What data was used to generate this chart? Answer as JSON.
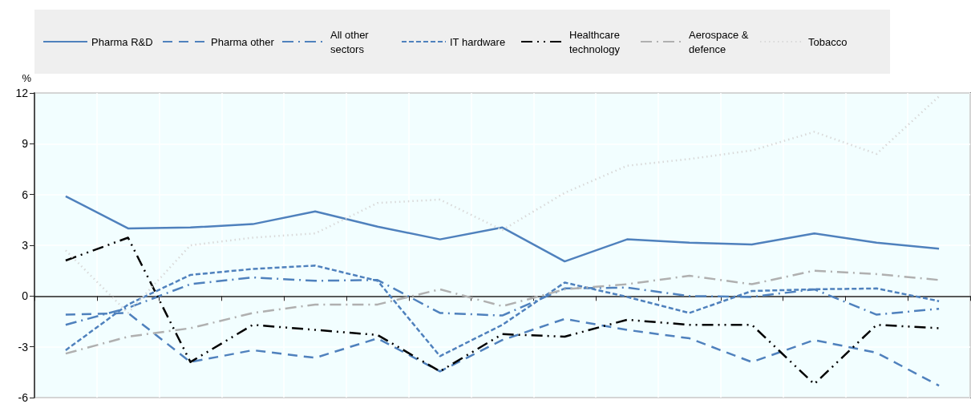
{
  "chart_data": {
    "type": "line",
    "ylabel": "%",
    "categories": [
      null,
      null,
      null,
      null,
      null,
      null,
      null,
      null,
      null,
      null,
      null,
      null,
      null,
      null,
      null
    ],
    "ylim": [
      -6,
      12
    ],
    "yticks": [
      -6,
      -3,
      0,
      3,
      6,
      9,
      12
    ],
    "grid": true,
    "legend": "top",
    "marker": "none",
    "series": [
      {
        "name": "Pharma R&D",
        "color": "#4f81bd",
        "line_style": "solid",
        "values": [
          5.9,
          4.0,
          4.05,
          4.25,
          5.0,
          4.1,
          3.35,
          4.05,
          2.05,
          3.35,
          3.15,
          3.05,
          3.7,
          3.15,
          2.8
        ]
      },
      {
        "name": "Pharma other",
        "color": "#4f81bd",
        "line_style": "longdash",
        "values": [
          -1.1,
          -1.0,
          -3.9,
          -3.2,
          -3.65,
          -2.5,
          -4.45,
          -2.6,
          -1.35,
          -2.0,
          -2.5,
          -3.9,
          -2.6,
          -3.35,
          -5.3
        ]
      },
      {
        "name": "All other sectors",
        "color": "#4f81bd",
        "line_style": "dashdot",
        "values": [
          -1.7,
          -0.7,
          0.7,
          1.1,
          0.9,
          0.95,
          -1.0,
          -1.15,
          0.45,
          0.5,
          0.0,
          -0.05,
          0.4,
          -1.1,
          -0.75
        ]
      },
      {
        "name": "IT hardware",
        "color": "#4f81bd",
        "line_style": "dashed",
        "values": [
          -3.2,
          -0.5,
          1.25,
          1.6,
          1.8,
          0.9,
          -3.55,
          -1.7,
          0.8,
          -0.05,
          -1.0,
          0.3,
          0.4,
          0.45,
          -0.3
        ]
      },
      {
        "name": "Healthcare technology",
        "color": "#000000",
        "line_style": "dashdotdot",
        "values": [
          2.1,
          3.45,
          -3.9,
          -1.7,
          -2.0,
          -2.3,
          -4.45,
          -2.25,
          -2.4,
          -1.4,
          -1.7,
          -1.7,
          -5.2,
          -1.7,
          -1.9
        ]
      },
      {
        "name": "Aerospace & defence",
        "color": "#b0b0b0",
        "line_style": "dashdot",
        "values": [
          -3.4,
          -2.4,
          -1.9,
          -1.0,
          -0.5,
          -0.5,
          0.4,
          -0.6,
          0.4,
          0.7,
          1.2,
          0.7,
          1.5,
          1.3,
          0.95
        ]
      },
      {
        "name": "Tobacco",
        "color": "#d9d9d9",
        "line_style": "dotted",
        "values": [
          2.7,
          -1.0,
          3.0,
          3.45,
          3.7,
          5.5,
          5.7,
          3.9,
          6.1,
          7.7,
          8.1,
          8.6,
          9.7,
          8.4,
          11.8
        ]
      }
    ]
  }
}
